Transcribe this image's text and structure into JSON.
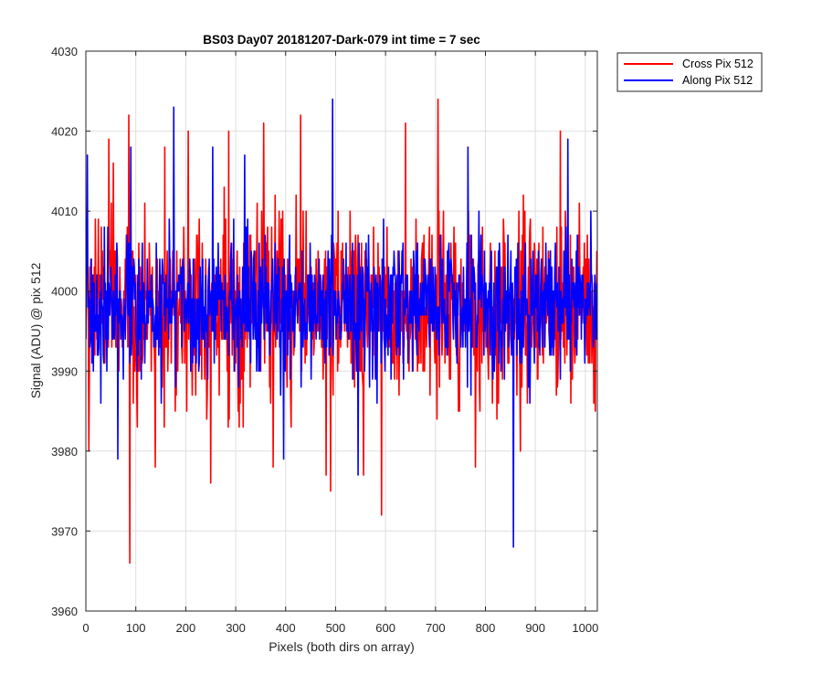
{
  "chart_data": {
    "type": "line",
    "title": "BS03 Day07 20181207-Dark-079 int time = 7 sec",
    "xlabel": "Pixels (both dirs on array)",
    "ylabel": "Signal (ADU) @ pix 512",
    "xlim": [
      0,
      1024
    ],
    "ylim": [
      3960,
      4030
    ],
    "xticks": [
      0,
      100,
      200,
      300,
      400,
      500,
      600,
      700,
      800,
      900,
      1000
    ],
    "yticks": [
      3960,
      3970,
      3980,
      3990,
      4000,
      4010,
      4020,
      4030
    ],
    "grid": true,
    "legend_position": "outside-top-right",
    "series": [
      {
        "name": "Cross Pix 512",
        "color": "#ff0000",
        "n_points": 1024,
        "mean": 3998,
        "sigma": 5.5,
        "extremes": [
          {
            "x": 6,
            "y": 3980
          },
          {
            "x": 19,
            "y": 4009
          },
          {
            "x": 25,
            "y": 4009
          },
          {
            "x": 46,
            "y": 4019
          },
          {
            "x": 55,
            "y": 4016
          },
          {
            "x": 86,
            "y": 4022
          },
          {
            "x": 88,
            "y": 3966
          },
          {
            "x": 139,
            "y": 3978
          },
          {
            "x": 158,
            "y": 4018
          },
          {
            "x": 205,
            "y": 4020
          },
          {
            "x": 250,
            "y": 3976
          },
          {
            "x": 286,
            "y": 4020
          },
          {
            "x": 356,
            "y": 4021
          },
          {
            "x": 375,
            "y": 3978
          },
          {
            "x": 430,
            "y": 4022
          },
          {
            "x": 481,
            "y": 3977
          },
          {
            "x": 490,
            "y": 3975
          },
          {
            "x": 556,
            "y": 3977
          },
          {
            "x": 592,
            "y": 3972
          },
          {
            "x": 640,
            "y": 4021
          },
          {
            "x": 705,
            "y": 4024
          },
          {
            "x": 780,
            "y": 3978
          },
          {
            "x": 870,
            "y": 3980
          },
          {
            "x": 950,
            "y": 4020
          },
          {
            "x": 1020,
            "y": 3985
          }
        ]
      },
      {
        "name": "Along Pix 512",
        "color": "#0000ff",
        "n_points": 1024,
        "mean": 3998,
        "sigma": 4.3,
        "extremes": [
          {
            "x": 3,
            "y": 4017
          },
          {
            "x": 64,
            "y": 3979
          },
          {
            "x": 90,
            "y": 4018
          },
          {
            "x": 176,
            "y": 4023
          },
          {
            "x": 254,
            "y": 4018
          },
          {
            "x": 318,
            "y": 4017
          },
          {
            "x": 396,
            "y": 3979
          },
          {
            "x": 494,
            "y": 4024
          },
          {
            "x": 545,
            "y": 3977
          },
          {
            "x": 765,
            "y": 4018
          },
          {
            "x": 856,
            "y": 3968
          },
          {
            "x": 965,
            "y": 4019
          }
        ]
      }
    ]
  }
}
